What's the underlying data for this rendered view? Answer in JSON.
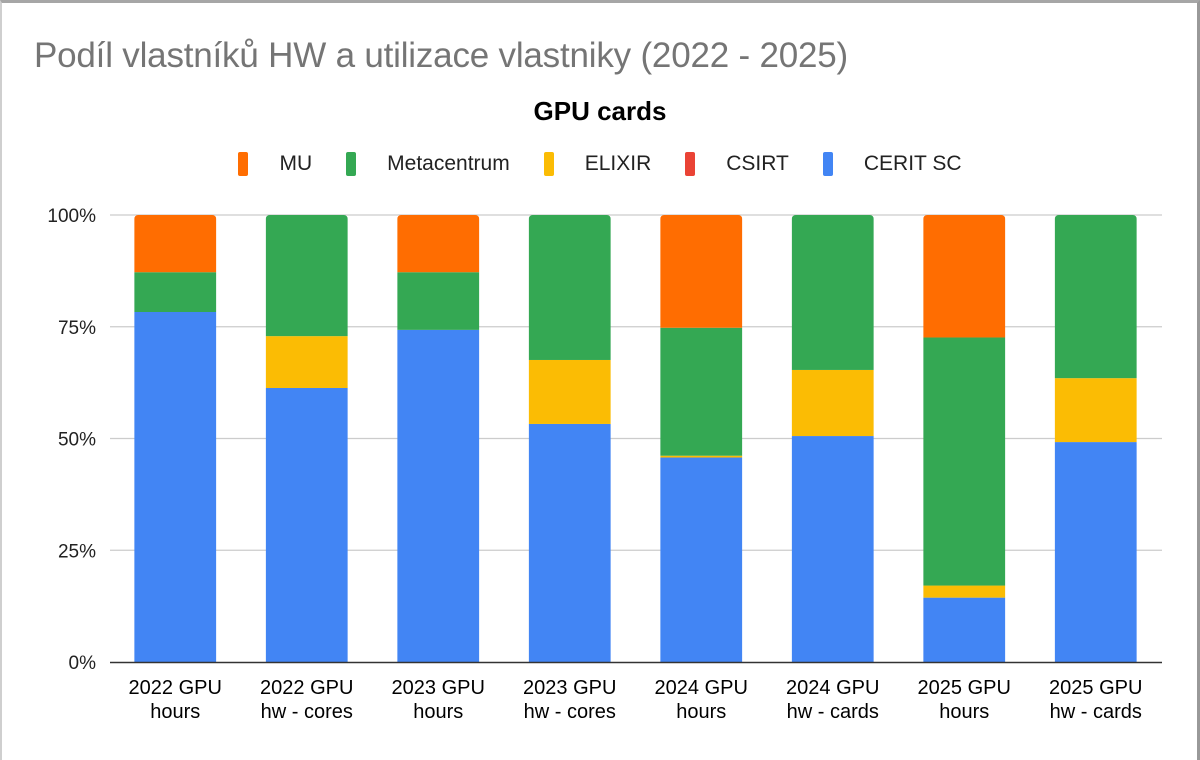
{
  "chart_data": {
    "type": "bar",
    "stacked": true,
    "normalized": true,
    "title": "Podíl vlastníků HW a utilizace vlastniky (2022 - 2025)",
    "subtitle": "GPU cards",
    "xlabel": "",
    "ylabel": "",
    "ylim": [
      0,
      100
    ],
    "yticks": [
      "0%",
      "25%",
      "50%",
      "75%",
      "100%"
    ],
    "ytick_values": [
      0,
      25,
      50,
      75,
      100
    ],
    "grid": true,
    "legend_position": "top",
    "categories": [
      [
        "2022 GPU",
        "hours"
      ],
      [
        "2022 GPU",
        "hw - cores"
      ],
      [
        "2023 GPU",
        "hours"
      ],
      [
        "2023 GPU",
        "hw - cores"
      ],
      [
        "2024 GPU",
        "hours"
      ],
      [
        "2024 GPU",
        "hw - cards"
      ],
      [
        "2025 GPU",
        "hours"
      ],
      [
        "2025 GPU",
        "hw - cards"
      ]
    ],
    "legend_order": [
      "MU",
      "Metacentrum",
      "ELIXIR",
      "CSIRT",
      "CERIT SC"
    ],
    "series": [
      {
        "name": "CERIT SC",
        "color": "#4285f4",
        "values": [
          78.3,
          61.3,
          74.3,
          53.2,
          45.7,
          50.6,
          14.4,
          49.2
        ]
      },
      {
        "name": "CSIRT",
        "color": "#ea4335",
        "values": [
          0,
          0,
          0,
          0,
          0,
          0,
          0,
          0
        ]
      },
      {
        "name": "ELIXIR",
        "color": "#fbbc04",
        "values": [
          0,
          11.6,
          0,
          14.3,
          0.4,
          14.8,
          2.7,
          14.3
        ]
      },
      {
        "name": "Metacentrum",
        "color": "#34a853",
        "values": [
          8.9,
          27.1,
          12.9,
          32.4,
          28.6,
          34.7,
          55.5,
          36.5
        ]
      },
      {
        "name": "MU",
        "color": "#ff6d01",
        "values": [
          12.8,
          0,
          12.8,
          0,
          25.2,
          0,
          27.4,
          0
        ]
      }
    ]
  }
}
